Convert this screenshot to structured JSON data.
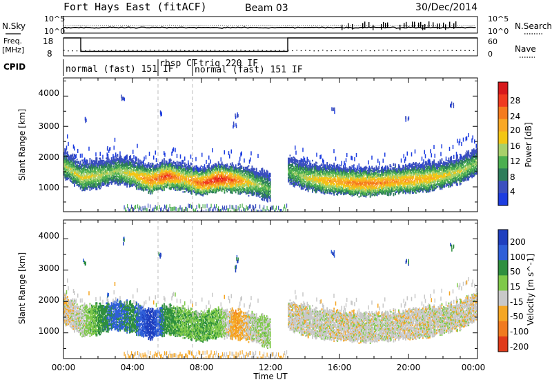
{
  "header": {
    "station": "Fort Hays East (fitACF)",
    "beam": "Beam 03",
    "date": "30/Dec/2014"
  },
  "left_labels": {
    "nsky": "N.Sky",
    "freq_line1": "Freq.",
    "freq_line2": "[MHz]",
    "cpid": "CPID"
  },
  "right_labels": {
    "nsearch": "N.Search",
    "nave": "Nave"
  },
  "noise_axis": {
    "top": "10^5",
    "bottom": "10^0"
  },
  "freq_axis": {
    "top": "18",
    "bottom": "8"
  },
  "nave_axis": {
    "top": "60",
    "bottom": "0"
  },
  "cpid_modes": [
    {
      "label": "normal (fast) 151 IF",
      "start": 0,
      "end": 5.5
    },
    {
      "label": "rbsp CT",
      "start": 5.5,
      "end": 7.5
    },
    {
      "label": "-trig 220 IF",
      "start": 7.5,
      "end": 8.6
    },
    {
      "label": "normal (fast) 151 IF",
      "start": 7.5,
      "end": 13
    }
  ],
  "x_axis": {
    "title": "Time UT",
    "ticks": [
      "00:00",
      "04:00",
      "08:00",
      "12:00",
      "16:00",
      "20:00",
      "00:00"
    ]
  },
  "power_panel": {
    "ylabel": "Slant Range [km]",
    "yticks": [
      "4000",
      "3000",
      "2000",
      "1000"
    ],
    "colorbar_label": "Power [dB]",
    "colorbar_ticks": [
      "28",
      "24",
      "20",
      "16",
      "12",
      "8",
      "4"
    ]
  },
  "velocity_panel": {
    "ylabel": "Slant Range [km]",
    "yticks": [
      "4000",
      "3000",
      "2000",
      "1000"
    ],
    "colorbar_label": "Velocity [m s^-1]",
    "colorbar_ticks": [
      "200",
      "100",
      "50",
      "15",
      "-15",
      "-50",
      "-100",
      "-200"
    ]
  },
  "colors": {
    "power_scale": [
      "#d7191c",
      "#f03b20",
      "#f57b1e",
      "#f9a825",
      "#f3c614",
      "#a8d06a",
      "#4caf50",
      "#2e7d5b",
      "#3b4fbf",
      "#1d3de0"
    ],
    "velocity_scale": [
      "#1f3fbf",
      "#2f5fd8",
      "#2f8f3f",
      "#7fc94a",
      "#c8c8c8",
      "#f5a623",
      "#f07a1f",
      "#e03a1a"
    ]
  },
  "chart_data": {
    "type": "heatmap",
    "x_unit": "hours UT",
    "xlim": [
      0,
      24
    ],
    "ylim": [
      180,
      4600
    ],
    "frequency_mhz": {
      "x": [
        0,
        1,
        1,
        13,
        13,
        24
      ],
      "y": [
        18,
        18,
        10.5,
        10.5,
        18,
        18
      ]
    },
    "power_bands": [
      {
        "x": [
          0,
          1,
          2,
          3,
          4,
          5,
          6,
          7,
          8,
          9,
          10,
          11,
          12
        ],
        "range_km": [
          1700,
          1300,
          1350,
          1500,
          1400,
          1200,
          1350,
          1250,
          1100,
          1250,
          1200,
          1100,
          900
        ],
        "peak_db": [
          12,
          16,
          14,
          12,
          16,
          22,
          26,
          18,
          24,
          28,
          22,
          14,
          10
        ]
      },
      {
        "x": [
          13,
          14,
          15,
          16,
          17,
          18,
          19,
          20,
          21,
          22,
          23,
          24
        ],
        "range_km": [
          1500,
          1300,
          1200,
          1150,
          1100,
          1100,
          1150,
          1200,
          1250,
          1350,
          1500,
          1800
        ],
        "peak_db": [
          10,
          14,
          18,
          20,
          22,
          22,
          20,
          20,
          18,
          16,
          14,
          12
        ]
      }
    ],
    "velocity_bands": [
      {
        "x": [
          0,
          1,
          2,
          3,
          4,
          5,
          6,
          7,
          8,
          9,
          10,
          11,
          12
        ],
        "range_km": [
          1800,
          1400,
          1450,
          1500,
          1500,
          1300,
          1400,
          1500,
          1300,
          1400,
          1350,
          1200,
          1000
        ],
        "velocity_ms": [
          -10,
          5,
          60,
          120,
          80,
          180,
          60,
          40,
          50,
          40,
          -40,
          10,
          20
        ]
      },
      {
        "x": [
          13,
          14,
          15,
          16,
          17,
          18,
          19,
          20,
          21,
          22,
          23,
          24
        ],
        "range_km": [
          1500,
          1300,
          1250,
          1200,
          1150,
          1150,
          1200,
          1250,
          1300,
          1400,
          1600,
          1900
        ],
        "velocity_ms": [
          -5,
          0,
          5,
          -5,
          0,
          5,
          0,
          -5,
          0,
          5,
          0,
          -5
        ]
      }
    ]
  }
}
